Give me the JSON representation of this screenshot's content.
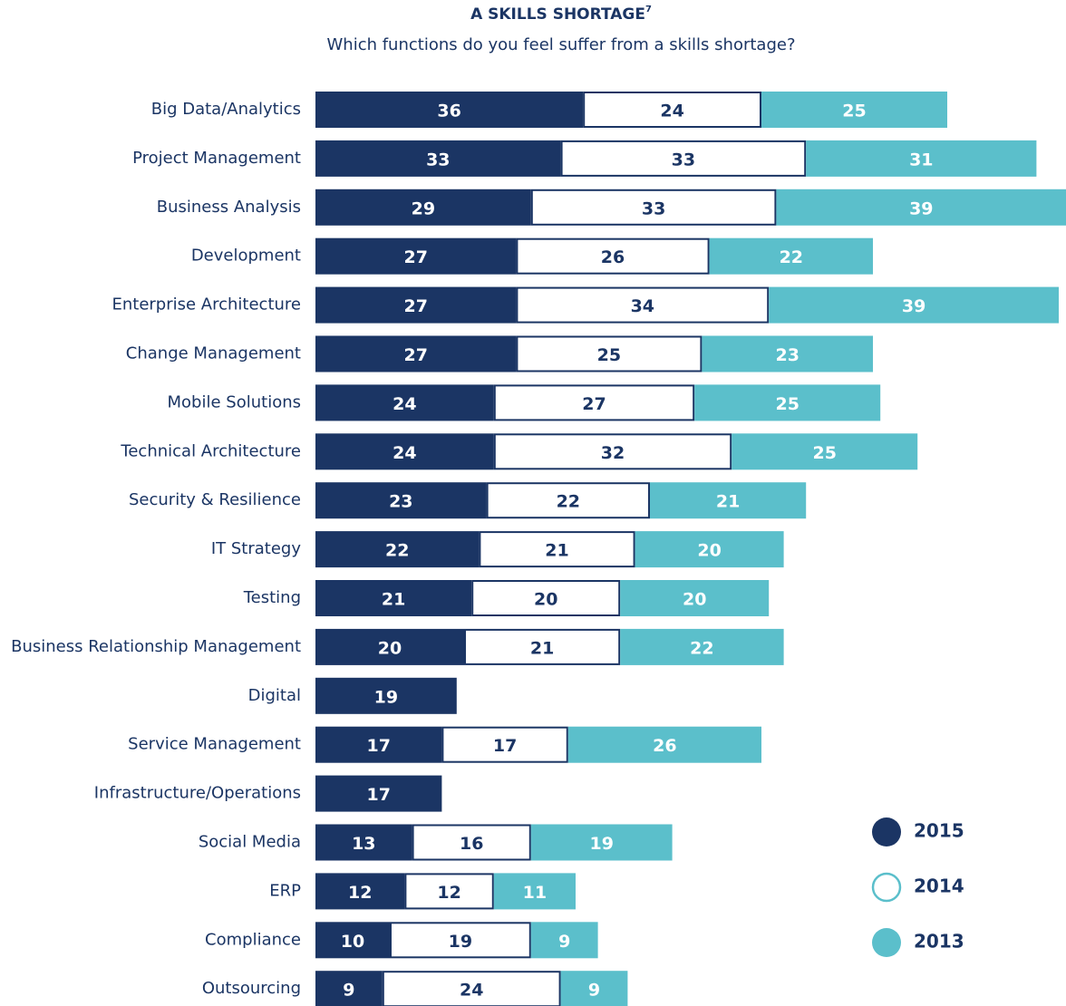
{
  "chart_data": {
    "type": "stacked-bar-horizontal",
    "title": "A SKILLS SHORTAGE",
    "title_note": "7",
    "subtitle": "Which functions do you feel suffer from a skills shortage?",
    "categories": [
      "Big Data/Analytics",
      "Project Management",
      "Business Analysis",
      "Development",
      "Enterprise Architecture",
      "Change Management",
      "Mobile Solutions",
      "Technical Architecture",
      "Security & Resilience",
      "IT Strategy",
      "Testing",
      "Business Relationship Management",
      "Digital",
      "Service Management",
      "Infrastructure/Operations",
      "Social Media",
      "ERP",
      "Compliance",
      "Outsourcing"
    ],
    "series": [
      {
        "name": "2015",
        "color": "#1b3564",
        "values": [
          36,
          33,
          29,
          27,
          27,
          27,
          24,
          24,
          23,
          22,
          21,
          20,
          19,
          17,
          17,
          13,
          12,
          10,
          9
        ]
      },
      {
        "name": "2014",
        "color": "#ffffff",
        "values": [
          24,
          33,
          33,
          26,
          34,
          25,
          27,
          32,
          22,
          21,
          20,
          21,
          null,
          17,
          null,
          16,
          12,
          19,
          24
        ]
      },
      {
        "name": "2013",
        "color": "#5bbfcb",
        "values": [
          25,
          31,
          39,
          22,
          39,
          23,
          25,
          25,
          21,
          20,
          20,
          22,
          null,
          26,
          null,
          19,
          11,
          9,
          9
        ]
      }
    ]
  }
}
